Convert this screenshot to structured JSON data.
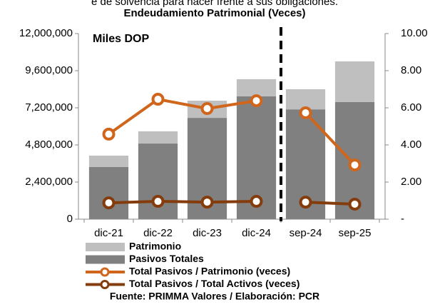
{
  "chart_data": {
    "type": "bar",
    "subtitle": "e de solvencia para hacer frente a sus obligaciones.",
    "title": "Endeudamiento Patrimonial (Veces)",
    "annotation": "Miles DOP",
    "source": "Fuente: PRIMMA Valores / Elaboración: PCR",
    "categories": [
      "dic-21",
      "dic-22",
      "dic-23",
      "dic-24",
      "sep-24",
      "sep-25"
    ],
    "divider_after": 3,
    "series": [
      {
        "name": "Patrimonio",
        "kind": "bar",
        "color": "#bfbfbf",
        "values": [
          740000,
          790000,
          1110000,
          1110000,
          1300000,
          2630000
        ]
      },
      {
        "name": "Pasivos Totales",
        "kind": "bar",
        "color": "#808080",
        "values": [
          3370000,
          4890000,
          6550000,
          7940000,
          7100000,
          7570000
        ]
      },
      {
        "name": "Total Pasivos / Patrimonio (veces)",
        "kind": "line",
        "axis": "y2",
        "color": "#d0661c",
        "values": [
          4.58,
          6.46,
          5.96,
          6.38,
          5.73,
          2.92
        ]
      },
      {
        "name": "Total Pasivos / Total Activos (veces)",
        "kind": "line",
        "axis": "y2",
        "color": "#843c0c",
        "values": [
          0.88,
          0.96,
          0.92,
          0.96,
          0.92,
          0.81
        ]
      }
    ],
    "ylim": [
      0,
      12000000
    ],
    "yticks": [
      0,
      {
        "value": 2400000,
        "label": "2,400,000"
      },
      {
        "value": 4800000,
        "label": "4,800,000"
      },
      {
        "value": 7200000,
        "label": "7,200,000"
      },
      {
        "value": 9600000,
        "label": "9,600,000"
      },
      {
        "value": 12000000,
        "label": "12,000,000"
      }
    ],
    "y2lim": [
      0,
      10
    ],
    "y2ticks": [
      {
        "value": 0,
        "label": "-"
      },
      {
        "value": 2,
        "label": "2.00"
      },
      {
        "value": 4,
        "label": "4.00"
      },
      {
        "value": 6,
        "label": "6.00"
      },
      {
        "value": 8,
        "label": "8.00"
      },
      {
        "value": 10,
        "label": "10.00"
      }
    ]
  }
}
